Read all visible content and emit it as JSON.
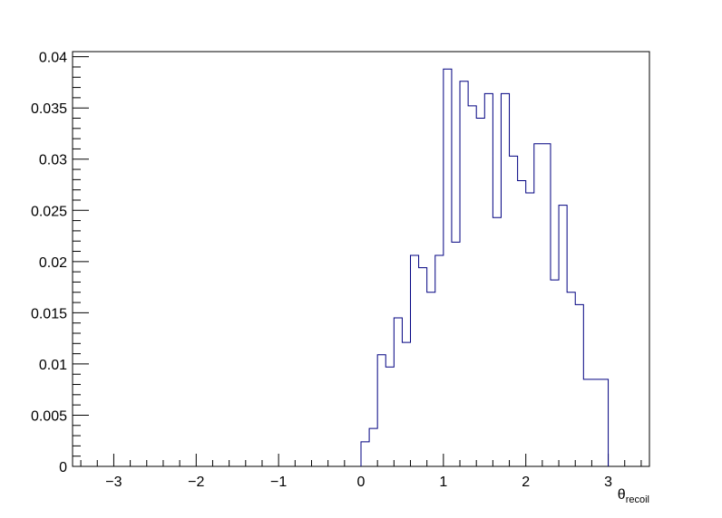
{
  "chart_data": {
    "type": "histogram",
    "title": "",
    "xlabel": {
      "symbol": "θ",
      "subscript": "recoil"
    },
    "ylabel": "",
    "xlim": [
      -3.5,
      3.5
    ],
    "ylim": [
      0,
      0.0405
    ],
    "grid": false,
    "legend": "none",
    "line_color": "#000080",
    "x_ticks": [
      "−3",
      "−2",
      "−1",
      "0",
      "1",
      "2",
      "3"
    ],
    "x_tick_values": [
      -3,
      -2,
      -1,
      0,
      1,
      2,
      3
    ],
    "y_ticks": [
      "0",
      "0.005",
      "0.01",
      "0.015",
      "0.02",
      "0.025",
      "0.03",
      "0.035",
      "0.04"
    ],
    "y_tick_values": [
      0,
      0.005,
      0.01,
      0.015,
      0.02,
      0.025,
      0.03,
      0.035,
      0.04
    ],
    "bins": [
      {
        "x0": 0.0,
        "x1": 0.1,
        "y": 0.0024
      },
      {
        "x0": 0.1,
        "x1": 0.2,
        "y": 0.0037
      },
      {
        "x0": 0.2,
        "x1": 0.3,
        "y": 0.0109
      },
      {
        "x0": 0.3,
        "x1": 0.4,
        "y": 0.0097
      },
      {
        "x0": 0.4,
        "x1": 0.5,
        "y": 0.0145
      },
      {
        "x0": 0.5,
        "x1": 0.6,
        "y": 0.0121
      },
      {
        "x0": 0.6,
        "x1": 0.7,
        "y": 0.0206
      },
      {
        "x0": 0.7,
        "x1": 0.8,
        "y": 0.0194
      },
      {
        "x0": 0.8,
        "x1": 0.9,
        "y": 0.017
      },
      {
        "x0": 0.9,
        "x1": 1.0,
        "y": 0.0206
      },
      {
        "x0": 1.0,
        "x1": 1.1,
        "y": 0.0388
      },
      {
        "x0": 1.1,
        "x1": 1.2,
        "y": 0.0219
      },
      {
        "x0": 1.2,
        "x1": 1.3,
        "y": 0.0376
      },
      {
        "x0": 1.3,
        "x1": 1.4,
        "y": 0.0352
      },
      {
        "x0": 1.4,
        "x1": 1.5,
        "y": 0.034
      },
      {
        "x0": 1.5,
        "x1": 1.6,
        "y": 0.0364
      },
      {
        "x0": 1.6,
        "x1": 1.7,
        "y": 0.0243
      },
      {
        "x0": 1.7,
        "x1": 1.8,
        "y": 0.0364
      },
      {
        "x0": 1.8,
        "x1": 1.9,
        "y": 0.0303
      },
      {
        "x0": 1.9,
        "x1": 2.0,
        "y": 0.0279
      },
      {
        "x0": 2.0,
        "x1": 2.1,
        "y": 0.0267
      },
      {
        "x0": 2.1,
        "x1": 2.3,
        "y": 0.0315
      },
      {
        "x0": 2.3,
        "x1": 2.4,
        "y": 0.0182
      },
      {
        "x0": 2.4,
        "x1": 2.5,
        "y": 0.0255
      },
      {
        "x0": 2.5,
        "x1": 2.6,
        "y": 0.017
      },
      {
        "x0": 2.6,
        "x1": 2.7,
        "y": 0.0158
      },
      {
        "x0": 2.7,
        "x1": 3.0,
        "y": 0.0085
      }
    ]
  }
}
